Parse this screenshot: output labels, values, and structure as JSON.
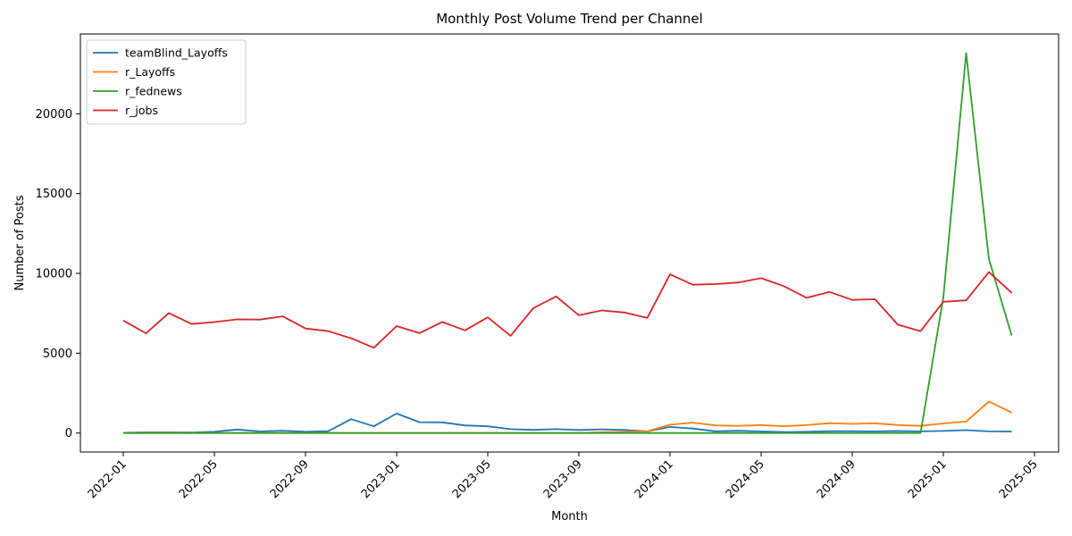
{
  "chart_data": {
    "type": "line",
    "title": "Monthly Post Volume Trend per Channel",
    "xlabel": "Month",
    "ylabel": "Number of Posts",
    "x_start": "2022-01",
    "x": [
      "2022-01",
      "2022-02",
      "2022-03",
      "2022-04",
      "2022-05",
      "2022-06",
      "2022-07",
      "2022-08",
      "2022-09",
      "2022-10",
      "2022-11",
      "2022-12",
      "2023-01",
      "2023-02",
      "2023-03",
      "2023-04",
      "2023-05",
      "2023-06",
      "2023-07",
      "2023-08",
      "2023-09",
      "2023-10",
      "2023-11",
      "2023-12",
      "2024-01",
      "2024-02",
      "2024-03",
      "2024-04",
      "2024-05",
      "2024-06",
      "2024-07",
      "2024-08",
      "2024-09",
      "2024-10",
      "2024-11",
      "2024-12",
      "2025-01",
      "2025-02",
      "2025-03",
      "2025-04"
    ],
    "xticks": [
      "2022-01",
      "2022-05",
      "2022-09",
      "2023-01",
      "2023-05",
      "2023-09",
      "2024-01",
      "2024-05",
      "2024-09",
      "2025-01",
      "2025-05"
    ],
    "yticks": [
      0,
      5000,
      10000,
      15000,
      20000
    ],
    "ylim": [
      -1190,
      25000
    ],
    "grid": false,
    "legend_position": "top-left",
    "series": [
      {
        "name": "teamBlind_Layoffs",
        "color": "#1f77b4",
        "values": [
          20,
          40,
          40,
          30,
          80,
          220,
          100,
          150,
          80,
          120,
          870,
          420,
          1220,
          680,
          670,
          480,
          420,
          240,
          200,
          240,
          190,
          230,
          190,
          100,
          380,
          280,
          110,
          140,
          100,
          60,
          80,
          120,
          120,
          100,
          130,
          100,
          130,
          180,
          100,
          90
        ]
      },
      {
        "name": "r_Layoffs",
        "color": "#ff7f0e",
        "values": [
          0,
          0,
          0,
          0,
          0,
          0,
          0,
          0,
          0,
          0,
          0,
          0,
          0,
          0,
          0,
          0,
          0,
          0,
          0,
          0,
          0,
          50,
          80,
          100,
          520,
          650,
          480,
          450,
          500,
          430,
          500,
          620,
          570,
          610,
          500,
          450,
          600,
          720,
          1980,
          1280
        ]
      },
      {
        "name": "r_fednews",
        "color": "#2ca02c",
        "values": [
          0,
          0,
          0,
          0,
          0,
          0,
          0,
          0,
          0,
          0,
          0,
          0,
          0,
          0,
          0,
          0,
          0,
          0,
          0,
          0,
          0,
          0,
          0,
          0,
          0,
          0,
          0,
          0,
          0,
          0,
          0,
          0,
          0,
          0,
          0,
          0,
          8500,
          23800,
          10900,
          6100
        ]
      },
      {
        "name": "r_jobs",
        "color": "#d62728",
        "values": [
          7050,
          6250,
          7520,
          6830,
          6950,
          7120,
          7110,
          7310,
          6550,
          6380,
          5940,
          5340,
          6700,
          6260,
          6960,
          6430,
          7250,
          6090,
          7820,
          8560,
          7380,
          7680,
          7550,
          7210,
          9940,
          9290,
          9330,
          9430,
          9700,
          9200,
          8470,
          8840,
          8340,
          8380,
          6790,
          6380,
          8220,
          8310,
          10080,
          8780
        ]
      }
    ]
  }
}
